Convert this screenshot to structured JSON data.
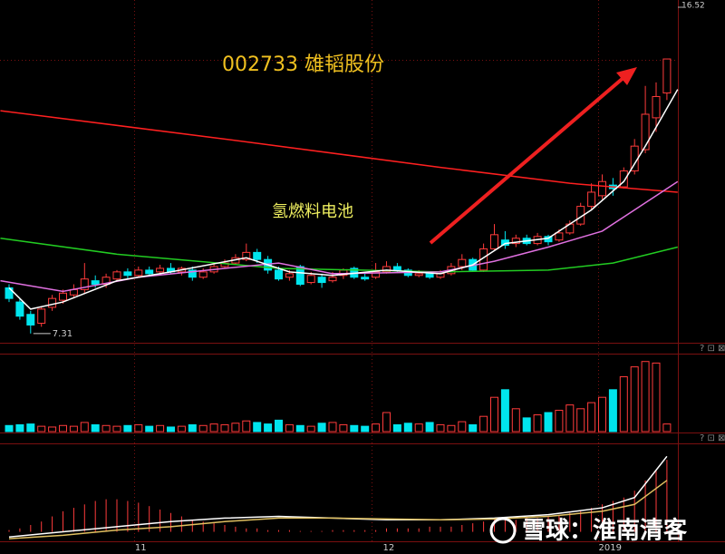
{
  "chart_data": {
    "type": "candlestick",
    "title": "002733 雄韬股份",
    "annotation": "氢燃料电池",
    "watermark": "雪球：淮南清客",
    "ylim": [
      7.05,
      16.52
    ],
    "yticks": [
      16.52
    ],
    "low_label": {
      "index": 2,
      "value": 7.31
    },
    "xlabels": [
      {
        "index": 11.5,
        "label": "11"
      },
      {
        "index": 34.5,
        "label": "12"
      },
      {
        "index": 54.5,
        "label": "2019"
      }
    ],
    "up_color": "#ff3b3b",
    "down_color": "#00e5ee",
    "candles": {
      "open": [
        8.6,
        8.2,
        7.85,
        7.6,
        8.05,
        8.25,
        8.4,
        8.55,
        8.8,
        8.7,
        8.85,
        9.05,
        8.95,
        9.1,
        9.05,
        9.15,
        9.05,
        9.1,
        8.9,
        9.05,
        9.2,
        9.3,
        9.4,
        9.6,
        9.4,
        9.1,
        8.9,
        9.2,
        8.75,
        8.9,
        8.8,
        8.95,
        9.15,
        8.9,
        8.9,
        9.05,
        9.2,
        9.1,
        8.95,
        9.0,
        8.9,
        9.0,
        9.2,
        9.4,
        9.1,
        9.7,
        9.95,
        9.85,
        10.0,
        9.85,
        10.05,
        9.95,
        10.15,
        10.4,
        10.9,
        11.2,
        11.5,
        11.45,
        11.9,
        12.5,
        13.4,
        14.1
      ],
      "close": [
        8.3,
        7.8,
        7.55,
        8.0,
        8.3,
        8.45,
        8.55,
        8.85,
        8.7,
        8.9,
        9.05,
        8.95,
        9.1,
        9.0,
        9.15,
        9.05,
        9.15,
        8.9,
        9.05,
        9.2,
        9.3,
        9.45,
        9.6,
        9.4,
        9.1,
        8.85,
        9.0,
        8.7,
        8.95,
        8.75,
        8.9,
        9.1,
        8.9,
        8.85,
        9.05,
        9.2,
        9.1,
        8.95,
        9.0,
        8.9,
        9.0,
        9.2,
        9.4,
        9.1,
        9.7,
        10.1,
        9.8,
        10.0,
        9.85,
        10.05,
        9.9,
        10.15,
        10.4,
        10.9,
        11.3,
        11.6,
        11.4,
        11.9,
        12.6,
        13.5,
        14.0,
        15.06
      ],
      "high": [
        8.7,
        8.3,
        7.95,
        8.05,
        8.4,
        8.55,
        8.7,
        9.3,
        8.95,
        9.0,
        9.1,
        9.15,
        9.2,
        9.2,
        9.25,
        9.3,
        9.2,
        9.2,
        9.15,
        9.3,
        9.4,
        9.55,
        9.85,
        9.7,
        9.5,
        9.2,
        9.1,
        9.25,
        9.05,
        9.0,
        9.05,
        9.15,
        9.2,
        9.0,
        9.3,
        9.35,
        9.3,
        9.15,
        9.1,
        9.05,
        9.1,
        9.3,
        9.55,
        9.45,
        9.85,
        10.4,
        10.2,
        10.1,
        10.1,
        10.15,
        10.1,
        10.25,
        10.5,
        11.0,
        11.55,
        11.8,
        11.7,
        12.0,
        12.8,
        14.3,
        14.4,
        15.06
      ],
      "low": [
        8.2,
        7.7,
        7.31,
        7.5,
        7.95,
        8.15,
        8.3,
        8.45,
        8.6,
        8.6,
        8.8,
        8.85,
        8.9,
        8.95,
        9.0,
        9.0,
        8.95,
        8.8,
        8.85,
        9.0,
        9.15,
        9.25,
        9.35,
        9.3,
        9.0,
        8.8,
        8.8,
        8.65,
        8.7,
        8.6,
        8.75,
        8.85,
        8.85,
        8.8,
        8.85,
        9.0,
        9.05,
        8.9,
        8.9,
        8.85,
        8.85,
        8.95,
        9.1,
        9.05,
        9.05,
        9.65,
        9.7,
        9.75,
        9.8,
        9.8,
        9.8,
        9.9,
        10.1,
        10.35,
        10.8,
        11.1,
        11.2,
        11.4,
        11.8,
        12.4,
        13.0,
        13.9
      ]
    },
    "ma_lines": [
      {
        "color": "#ff2020",
        "x": [
          -0.8,
          20,
          40,
          52,
          62
        ],
        "values": [
          13.6,
          12.8,
          12.0,
          11.55,
          11.3
        ]
      },
      {
        "color": "#22cc22",
        "x": [
          -0.8,
          10,
          25,
          40,
          50,
          56,
          62
        ],
        "values": [
          10.0,
          9.55,
          9.15,
          9.05,
          9.1,
          9.3,
          9.75
        ]
      },
      {
        "color": "#e070e0",
        "x": [
          -0.8,
          5,
          12,
          20,
          25,
          30,
          40,
          45,
          50,
          55,
          58,
          62
        ],
        "values": [
          8.8,
          8.5,
          8.9,
          9.15,
          9.3,
          9.0,
          9.05,
          9.35,
          9.75,
          10.2,
          10.8,
          11.6
        ]
      },
      {
        "color": "#ffffff",
        "x": [
          0,
          2,
          5,
          10,
          15,
          22,
          26,
          30,
          35,
          40,
          43,
          46,
          50,
          54,
          57,
          59,
          62
        ],
        "values": [
          8.6,
          8.0,
          8.2,
          8.8,
          9.05,
          9.45,
          9.05,
          8.95,
          9.1,
          9.0,
          9.25,
          9.85,
          10.0,
          10.8,
          11.6,
          12.6,
          14.2
        ]
      }
    ],
    "volume": {
      "ylim": [
        0,
        100
      ],
      "values": [
        8,
        9,
        10,
        7,
        6,
        8,
        7,
        12,
        9,
        8,
        7,
        8,
        9,
        7,
        8,
        6,
        7,
        9,
        8,
        10,
        9,
        11,
        14,
        12,
        10,
        15,
        9,
        8,
        7,
        11,
        12,
        9,
        8,
        7,
        10,
        25,
        9,
        11,
        10,
        12,
        9,
        8,
        13,
        9,
        20,
        45,
        55,
        30,
        18,
        22,
        25,
        28,
        35,
        30,
        38,
        45,
        55,
        72,
        85,
        92,
        90,
        10
      ]
    },
    "macd": {
      "ylim": [
        -5,
        50
      ],
      "hist": [
        1,
        2,
        4,
        6,
        9,
        12,
        14,
        16,
        18,
        19,
        19,
        18,
        17,
        15,
        13,
        11,
        9,
        7,
        6,
        5,
        4,
        3,
        2,
        2,
        1,
        1,
        1,
        0.5,
        0.5,
        0.5,
        1,
        1,
        1,
        1,
        1,
        2,
        2,
        2,
        2,
        3,
        3,
        3,
        4,
        5,
        6,
        7,
        7,
        7,
        8,
        8,
        9,
        10,
        11,
        12,
        14,
        16,
        18,
        20,
        24,
        30,
        36,
        42
      ],
      "lines": [
        {
          "color": "#ffffff",
          "x": [
            0,
            5,
            10,
            15,
            20,
            25,
            30,
            35,
            40,
            45,
            50,
            55,
            58,
            61
          ],
          "values": [
            -3,
            0,
            3,
            6,
            8,
            9,
            8,
            7,
            7,
            8,
            10,
            14,
            20,
            44
          ]
        },
        {
          "color": "#e0c060",
          "x": [
            0,
            5,
            10,
            15,
            20,
            25,
            30,
            35,
            40,
            45,
            50,
            55,
            58,
            61
          ],
          "values": [
            -4,
            -2,
            1,
            3,
            6,
            8,
            8,
            7.5,
            7,
            7.5,
            9,
            12,
            16,
            30
          ]
        }
      ]
    }
  }
}
